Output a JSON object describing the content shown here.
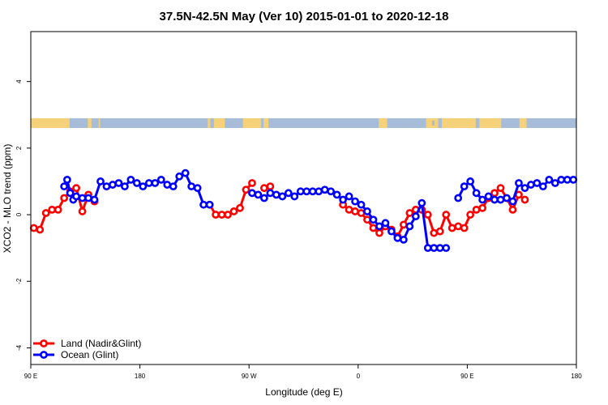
{
  "chart_data": {
    "type": "line",
    "title": "37.5N-42.5N May (Ver 10)   2015-01-01 to 2020-12-18",
    "xlabel": "Longitude (deg E)",
    "ylabel": "XCO2 - MLO trend (ppm)",
    "xlim": [
      90,
      540
    ],
    "ylim": [
      -4.5,
      5.5
    ],
    "x_ticks": [
      {
        "value": 90,
        "label": "90 E"
      },
      {
        "value": 180,
        "label": "180"
      },
      {
        "value": 270,
        "label": "90 W"
      },
      {
        "value": 360,
        "label": "0"
      },
      {
        "value": 450,
        "label": "90 E"
      },
      {
        "value": 540,
        "label": "180"
      }
    ],
    "y_ticks": [
      {
        "value": -4,
        "label": "-4"
      },
      {
        "value": -2,
        "label": "-2"
      },
      {
        "value": 0,
        "label": "0"
      },
      {
        "value": 2,
        "label": "2"
      },
      {
        "value": 4,
        "label": "4"
      }
    ],
    "grid": false,
    "legend_position": "bottom-left",
    "land_band": {
      "y_center": 2.75,
      "land_color": "#f5d27a",
      "ocean_color": "#a7bcd9",
      "land_segments": [
        [
          90,
          122
        ],
        [
          137,
          140
        ],
        [
          146,
          147
        ],
        [
          236,
          238
        ],
        [
          241,
          250
        ],
        [
          265,
          280
        ],
        [
          282,
          286
        ],
        [
          377,
          384
        ],
        [
          416,
          426
        ],
        [
          429,
          457
        ],
        [
          460,
          478
        ],
        [
          493,
          499
        ]
      ],
      "ocean_segments": [
        [
          122,
          125
        ],
        [
          129,
          134
        ],
        [
          154,
          169
        ],
        [
          374,
          377
        ],
        [
          384,
          395
        ],
        [
          398,
          413
        ],
        [
          421,
          423
        ],
        [
          478,
          479
        ],
        [
          481,
          485
        ],
        [
          499,
          502
        ]
      ]
    },
    "series": [
      {
        "name": "Land (Nadir&Glint)",
        "color": "#ff0000",
        "x": [
          92.5,
          97.5,
          102.5,
          107.5,
          112.5,
          117.5,
          122.5,
          127.5,
          132.5,
          137.5,
          142.5,
          237.5,
          242.5,
          247.5,
          252.5,
          257.5,
          262.5,
          267.5,
          272.5,
          282.5,
          287.5,
          347.5,
          352.5,
          357.5,
          362.5,
          367.5,
          372.5,
          377.5,
          382.5,
          387.5,
          392.5,
          397.5,
          402.5,
          407.5,
          412.5,
          417.5,
          422.5,
          427.5,
          432.5,
          437.5,
          442.5,
          447.5,
          452.5,
          457.5,
          462.5,
          467.5,
          472.5,
          477.5,
          482.5,
          487.5,
          492.5,
          497.5
        ],
        "y": [
          -0.4,
          -0.45,
          0.05,
          0.15,
          0.15,
          0.5,
          0.7,
          0.8,
          0.1,
          0.6,
          0.4,
          0.3,
          0.0,
          0.0,
          0.0,
          0.1,
          0.2,
          0.75,
          0.95,
          0.8,
          0.85,
          0.3,
          0.15,
          0.1,
          0.05,
          -0.15,
          -0.4,
          -0.55,
          -0.35,
          -0.45,
          -0.65,
          -0.3,
          0.05,
          0.15,
          0.15,
          0.0,
          -0.55,
          -0.5,
          0.0,
          -0.4,
          -0.35,
          -0.4,
          0.0,
          0.15,
          0.2,
          0.5,
          0.65,
          0.8,
          0.5,
          0.15,
          0.6,
          0.45
        ]
      },
      {
        "name": "Ocean (Glint)",
        "color": "#0000ff",
        "x": [
          117.5,
          120,
          122.5,
          125,
          127.5,
          132.5,
          137.5,
          142.5,
          147.5,
          152.5,
          157.5,
          162.5,
          167.5,
          172.5,
          177.5,
          182.5,
          187.5,
          192.5,
          197.5,
          202.5,
          207.5,
          212.5,
          217.5,
          222.5,
          227.5,
          232.5,
          237.5,
          272.5,
          277.5,
          282.5,
          287.5,
          292.5,
          297.5,
          302.5,
          307.5,
          312.5,
          317.5,
          322.5,
          327.5,
          332.5,
          337.5,
          342.5,
          347.5,
          352.5,
          357.5,
          362.5,
          367.5,
          372.5,
          377.5,
          382.5,
          387.5,
          392.5,
          397.5,
          402.5,
          407.5,
          412.5,
          417.5,
          422.5,
          427.5,
          432.5,
          442.5,
          447.5,
          452.5,
          457.5,
          462.5,
          467.5,
          472.5,
          477.5,
          482.5,
          487.5,
          492.5,
          497.5,
          502.5,
          507.5,
          512.5,
          517.5,
          522.5,
          527.5,
          532.5,
          537.5
        ],
        "y": [
          0.85,
          1.05,
          0.65,
          0.45,
          0.55,
          0.5,
          0.5,
          0.45,
          1.0,
          0.85,
          0.9,
          0.95,
          0.85,
          1.05,
          0.95,
          0.85,
          0.95,
          0.95,
          1.05,
          0.9,
          0.85,
          1.15,
          1.25,
          0.85,
          0.8,
          0.3,
          0.3,
          0.65,
          0.6,
          0.5,
          0.65,
          0.6,
          0.55,
          0.65,
          0.55,
          0.7,
          0.7,
          0.7,
          0.7,
          0.75,
          0.7,
          0.6,
          0.45,
          0.55,
          0.4,
          0.3,
          0.1,
          -0.15,
          -0.35,
          -0.25,
          -0.5,
          -0.7,
          -0.75,
          -0.35,
          -0.05,
          0.35,
          -1.0,
          -1.0,
          -1.0,
          -1.0,
          0.5,
          0.85,
          1.0,
          0.65,
          0.45,
          0.55,
          0.45,
          0.45,
          0.5,
          0.4,
          0.95,
          0.8,
          0.9,
          0.95,
          0.85,
          1.05,
          0.95,
          1.05,
          1.05,
          1.05
        ],
        "connect": true
      }
    ]
  }
}
